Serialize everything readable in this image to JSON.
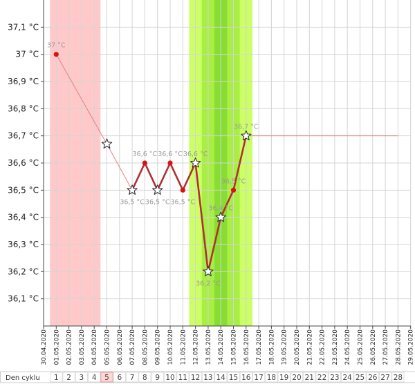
{
  "chart_data": {
    "type": "line",
    "ylim": [
      36.0,
      37.2
    ],
    "y_ticks": [
      "37,1 °C",
      "37 °C",
      "36,9 °C",
      "36,8 °C",
      "36,7 °C",
      "36,6 °C",
      "36,5 °C",
      "36,4 °C",
      "36,3 °C",
      "36,2 °C",
      "36,1 °C"
    ],
    "y_tick_values": [
      37.1,
      37.0,
      36.9,
      36.8,
      36.7,
      36.6,
      36.5,
      36.4,
      36.3,
      36.2,
      36.1
    ],
    "dates": [
      "30.04.2020",
      "01.05.2020",
      "02.05.2020",
      "03.05.2020",
      "04.05.2020",
      "05.05.2020",
      "06.05.2020",
      "07.05.2020",
      "08.05.2020",
      "09.05.2020",
      "10.05.2020",
      "11.05.2020",
      "12.05.2020",
      "13.05.2020",
      "14.05.2020",
      "15.05.2020",
      "16.05.2020",
      "17.05.2020",
      "18.05.2020",
      "19.05.2020",
      "20.05.2020",
      "21.05.2020",
      "22.05.2020",
      "23.05.2020",
      "24.05.2020",
      "25.05.2020",
      "26.05.2020",
      "27.05.2020",
      "28.05.2020",
      "29.05.2020"
    ],
    "cycle_label": "Den cyklu",
    "cycle_days": [
      "1",
      "2",
      "3",
      "4",
      "5",
      "6",
      "7",
      "8",
      "9",
      "10",
      "11",
      "12",
      "13",
      "14",
      "15",
      "16",
      "17",
      "18",
      "19",
      "20",
      "21",
      "22",
      "23",
      "24",
      "25",
      "26",
      "27",
      "28"
    ],
    "current_cycle_day": "5",
    "menstruation_days": [
      1,
      4
    ],
    "fertile_window_days": [
      12,
      16
    ],
    "ovulation_day": 14,
    "points": [
      {
        "day": 1,
        "date": "01.05.2020",
        "value": 37.0,
        "label": "37 °C",
        "marker": "dot"
      },
      {
        "day": 5,
        "date": "05.05.2020",
        "value": 36.67,
        "label": "",
        "marker": "star"
      },
      {
        "day": 7,
        "date": "07.05.2020",
        "value": 36.5,
        "label": "36,5 °C",
        "marker": "star"
      },
      {
        "day": 8,
        "date": "08.05.2020",
        "value": 36.6,
        "label": "36,6 °C",
        "marker": "dot"
      },
      {
        "day": 9,
        "date": "09.05.2020",
        "value": 36.5,
        "label": "36,5 °C",
        "marker": "star"
      },
      {
        "day": 10,
        "date": "10.05.2020",
        "value": 36.6,
        "label": "36,6 °C",
        "marker": "dot"
      },
      {
        "day": 11,
        "date": "11.05.2020",
        "value": 36.5,
        "label": "36,5 °C",
        "marker": "dot"
      },
      {
        "day": 12,
        "date": "12.05.2020",
        "value": 36.6,
        "label": "36,6 °C",
        "marker": "star"
      },
      {
        "day": 13,
        "date": "13.05.2020",
        "value": 36.2,
        "label": "36,2 °C",
        "marker": "star"
      },
      {
        "day": 14,
        "date": "14.05.2020",
        "value": 36.4,
        "label": "36,4 °C",
        "marker": "star"
      },
      {
        "day": 15,
        "date": "15.05.2020",
        "value": 36.5,
        "label": "36,5 °C",
        "marker": "dot"
      },
      {
        "day": 16,
        "date": "16.05.2020",
        "value": 36.7,
        "label": "36,7 °C",
        "marker": "star"
      }
    ],
    "projection": {
      "from_day": 16,
      "to_day": 28,
      "value": 36.7
    },
    "colors": {
      "menstruation": "#ffc9c9",
      "fertile": "#ccff66",
      "fertile_peak": "#a8ee44",
      "ovulation": "#88dd33",
      "thin_line": "#e08080",
      "thick_line": "#b03030",
      "dot": "#dd1111",
      "current_day_fill": "#ffd6d6",
      "grid": "#d4d4d4"
    }
  }
}
